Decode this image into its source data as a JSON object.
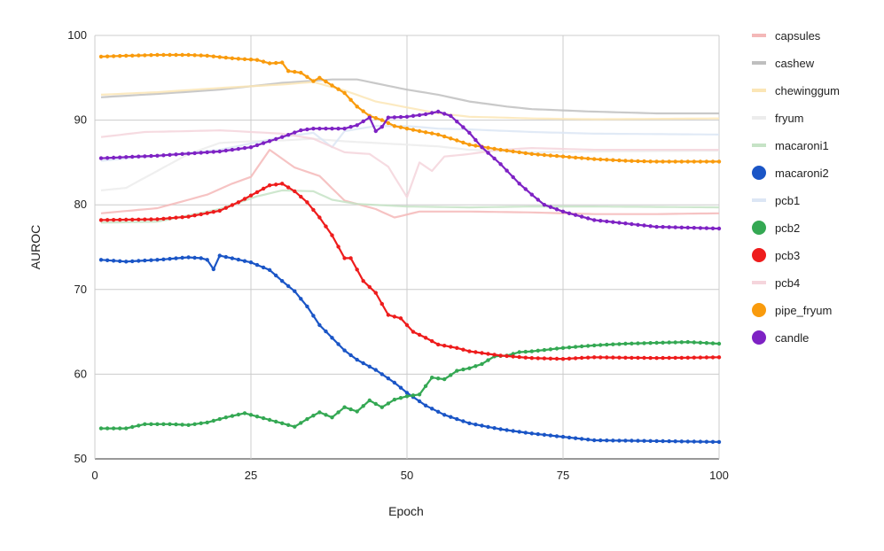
{
  "chart_data": {
    "type": "line",
    "title": "",
    "xlabel": "Epoch",
    "ylabel": "AUROC",
    "xlim": [
      0,
      100
    ],
    "ylim": [
      50,
      100
    ],
    "xticks": [
      0,
      25,
      50,
      75,
      100
    ],
    "yticks": [
      50,
      60,
      70,
      80,
      90,
      100
    ],
    "grid": true,
    "legend_position": "right",
    "series": [
      {
        "name": "capsules",
        "color": "#f4b8b8",
        "faded": true,
        "marker": false,
        "points": [
          [
            1,
            79.0
          ],
          [
            10,
            79.6
          ],
          [
            18,
            81.2
          ],
          [
            22,
            82.5
          ],
          [
            25,
            83.3
          ],
          [
            28,
            86.5
          ],
          [
            32,
            84.4
          ],
          [
            36,
            83.4
          ],
          [
            40,
            80.5
          ],
          [
            45,
            79.5
          ],
          [
            48,
            78.5
          ],
          [
            52,
            79.2
          ],
          [
            60,
            79.2
          ],
          [
            70,
            79.1
          ],
          [
            80,
            78.9
          ],
          [
            90,
            78.9
          ],
          [
            100,
            79.0
          ]
        ]
      },
      {
        "name": "cashew",
        "color": "#bfbfbf",
        "faded": true,
        "marker": false,
        "points": [
          [
            1,
            92.7
          ],
          [
            10,
            93.1
          ],
          [
            20,
            93.6
          ],
          [
            30,
            94.4
          ],
          [
            38,
            94.8
          ],
          [
            42,
            94.8
          ],
          [
            50,
            93.6
          ],
          [
            55,
            93.0
          ],
          [
            60,
            92.2
          ],
          [
            66,
            91.6
          ],
          [
            70,
            91.3
          ],
          [
            80,
            91.0
          ],
          [
            90,
            90.8
          ],
          [
            100,
            90.8
          ]
        ]
      },
      {
        "name": "chewinggum",
        "color": "#fbe6b6",
        "faded": true,
        "marker": false,
        "points": [
          [
            1,
            93.0
          ],
          [
            10,
            93.3
          ],
          [
            20,
            93.8
          ],
          [
            30,
            94.2
          ],
          [
            35,
            94.5
          ],
          [
            40,
            93.5
          ],
          [
            45,
            92.2
          ],
          [
            50,
            91.5
          ],
          [
            55,
            90.8
          ],
          [
            60,
            90.4
          ],
          [
            70,
            90.2
          ],
          [
            80,
            90.1
          ],
          [
            100,
            90.2
          ]
        ]
      },
      {
        "name": "fryum",
        "color": "#ececec",
        "faded": true,
        "marker": false,
        "points": [
          [
            1,
            81.7
          ],
          [
            5,
            82.0
          ],
          [
            10,
            84.0
          ],
          [
            15,
            86.0
          ],
          [
            20,
            87.3
          ],
          [
            25,
            87.5
          ],
          [
            30,
            87.6
          ],
          [
            35,
            87.8
          ],
          [
            40,
            87.5
          ],
          [
            45,
            87.3
          ],
          [
            50,
            87.1
          ],
          [
            55,
            86.9
          ],
          [
            60,
            86.5
          ],
          [
            70,
            86.2
          ],
          [
            80,
            86.3
          ],
          [
            100,
            86.4
          ]
        ]
      },
      {
        "name": "macaroni1",
        "color": "#c6e3c6",
        "faded": true,
        "marker": false,
        "points": [
          [
            1,
            77.9
          ],
          [
            10,
            78.0
          ],
          [
            20,
            79.5
          ],
          [
            26,
            81.0
          ],
          [
            30,
            81.7
          ],
          [
            35,
            81.6
          ],
          [
            38,
            80.6
          ],
          [
            42,
            80.1
          ],
          [
            50,
            79.8
          ],
          [
            60,
            79.7
          ],
          [
            70,
            79.8
          ],
          [
            80,
            79.8
          ],
          [
            100,
            79.7
          ]
        ]
      },
      {
        "name": "macaroni2",
        "color": "#1a55c6",
        "faded": false,
        "marker": true,
        "points": [
          [
            1,
            73.5
          ],
          [
            5,
            73.3
          ],
          [
            10,
            73.5
          ],
          [
            15,
            73.8
          ],
          [
            17,
            73.7
          ],
          [
            18,
            73.5
          ],
          [
            19,
            72.4
          ],
          [
            20,
            74.0
          ],
          [
            25,
            73.2
          ],
          [
            28,
            72.3
          ],
          [
            30,
            71.0
          ],
          [
            32,
            69.8
          ],
          [
            34,
            68.0
          ],
          [
            36,
            65.8
          ],
          [
            38,
            64.3
          ],
          [
            40,
            62.8
          ],
          [
            42,
            61.7
          ],
          [
            45,
            60.5
          ],
          [
            48,
            59.0
          ],
          [
            50,
            57.8
          ],
          [
            53,
            56.3
          ],
          [
            56,
            55.2
          ],
          [
            60,
            54.2
          ],
          [
            65,
            53.5
          ],
          [
            70,
            53.0
          ],
          [
            75,
            52.6
          ],
          [
            80,
            52.2
          ],
          [
            90,
            52.1
          ],
          [
            100,
            52.0
          ]
        ]
      },
      {
        "name": "pcb1",
        "color": "#dce6f5",
        "faded": true,
        "marker": false,
        "points": [
          [
            1,
            85.2
          ],
          [
            10,
            85.8
          ],
          [
            20,
            86.5
          ],
          [
            30,
            88.0
          ],
          [
            35,
            88.5
          ],
          [
            38,
            86.8
          ],
          [
            40,
            88.7
          ],
          [
            45,
            89.3
          ],
          [
            50,
            89.3
          ],
          [
            55,
            89.0
          ],
          [
            60,
            88.9
          ],
          [
            70,
            88.6
          ],
          [
            80,
            88.4
          ],
          [
            100,
            88.3
          ]
        ]
      },
      {
        "name": "pcb2",
        "color": "#34a853",
        "faded": false,
        "marker": true,
        "points": [
          [
            1,
            53.6
          ],
          [
            5,
            53.6
          ],
          [
            8,
            54.1
          ],
          [
            12,
            54.1
          ],
          [
            15,
            54.0
          ],
          [
            18,
            54.3
          ],
          [
            21,
            54.9
          ],
          [
            24,
            55.4
          ],
          [
            27,
            54.8
          ],
          [
            30,
            54.2
          ],
          [
            32,
            53.8
          ],
          [
            34,
            54.7
          ],
          [
            36,
            55.5
          ],
          [
            38,
            54.9
          ],
          [
            40,
            56.1
          ],
          [
            42,
            55.6
          ],
          [
            44,
            56.9
          ],
          [
            46,
            56.1
          ],
          [
            48,
            57.0
          ],
          [
            50,
            57.4
          ],
          [
            52,
            57.6
          ],
          [
            54,
            59.6
          ],
          [
            56,
            59.4
          ],
          [
            58,
            60.4
          ],
          [
            60,
            60.7
          ],
          [
            62,
            61.2
          ],
          [
            64,
            62.1
          ],
          [
            66,
            62.2
          ],
          [
            68,
            62.6
          ],
          [
            70,
            62.7
          ],
          [
            75,
            63.1
          ],
          [
            80,
            63.4
          ],
          [
            85,
            63.6
          ],
          [
            90,
            63.7
          ],
          [
            95,
            63.8
          ],
          [
            100,
            63.6
          ]
        ]
      },
      {
        "name": "pcb3",
        "color": "#ee1c1c",
        "faded": false,
        "marker": true,
        "points": [
          [
            1,
            78.2
          ],
          [
            10,
            78.3
          ],
          [
            15,
            78.6
          ],
          [
            20,
            79.3
          ],
          [
            23,
            80.3
          ],
          [
            26,
            81.5
          ],
          [
            28,
            82.3
          ],
          [
            30,
            82.5
          ],
          [
            32,
            81.6
          ],
          [
            34,
            80.3
          ],
          [
            36,
            78.5
          ],
          [
            38,
            76.4
          ],
          [
            40,
            73.7
          ],
          [
            41,
            73.7
          ],
          [
            43,
            71.0
          ],
          [
            45,
            69.6
          ],
          [
            47,
            67.0
          ],
          [
            49,
            66.6
          ],
          [
            51,
            65.0
          ],
          [
            53,
            64.3
          ],
          [
            55,
            63.5
          ],
          [
            58,
            63.1
          ],
          [
            60,
            62.7
          ],
          [
            65,
            62.2
          ],
          [
            70,
            61.9
          ],
          [
            75,
            61.8
          ],
          [
            80,
            62.0
          ],
          [
            90,
            61.9
          ],
          [
            100,
            62.0
          ]
        ]
      },
      {
        "name": "pcb4",
        "color": "#f5d5dc",
        "faded": true,
        "marker": false,
        "points": [
          [
            1,
            88.0
          ],
          [
            8,
            88.6
          ],
          [
            15,
            88.7
          ],
          [
            20,
            88.8
          ],
          [
            25,
            88.6
          ],
          [
            30,
            88.4
          ],
          [
            35,
            87.8
          ],
          [
            40,
            86.2
          ],
          [
            44,
            86.0
          ],
          [
            47,
            84.5
          ],
          [
            50,
            80.9
          ],
          [
            52,
            85.0
          ],
          [
            54,
            84.0
          ],
          [
            56,
            85.7
          ],
          [
            60,
            86.0
          ],
          [
            65,
            86.5
          ],
          [
            70,
            86.7
          ],
          [
            80,
            86.5
          ],
          [
            100,
            86.5
          ]
        ]
      },
      {
        "name": "pipe_fryum",
        "color": "#f99b0d",
        "faded": false,
        "marker": true,
        "points": [
          [
            1,
            97.5
          ],
          [
            5,
            97.6
          ],
          [
            10,
            97.7
          ],
          [
            15,
            97.7
          ],
          [
            18,
            97.6
          ],
          [
            22,
            97.3
          ],
          [
            26,
            97.1
          ],
          [
            28,
            96.7
          ],
          [
            30,
            96.8
          ],
          [
            31,
            95.8
          ],
          [
            33,
            95.6
          ],
          [
            35,
            94.6
          ],
          [
            36,
            95.0
          ],
          [
            38,
            94.1
          ],
          [
            40,
            93.2
          ],
          [
            42,
            91.6
          ],
          [
            44,
            90.5
          ],
          [
            46,
            90.0
          ],
          [
            48,
            89.3
          ],
          [
            50,
            89.0
          ],
          [
            52,
            88.7
          ],
          [
            55,
            88.3
          ],
          [
            58,
            87.6
          ],
          [
            60,
            87.1
          ],
          [
            65,
            86.5
          ],
          [
            70,
            86.0
          ],
          [
            75,
            85.7
          ],
          [
            80,
            85.4
          ],
          [
            85,
            85.2
          ],
          [
            90,
            85.1
          ],
          [
            100,
            85.1
          ]
        ]
      },
      {
        "name": "candle",
        "color": "#7e22c4",
        "faded": false,
        "marker": true,
        "points": [
          [
            1,
            85.5
          ],
          [
            10,
            85.8
          ],
          [
            20,
            86.3
          ],
          [
            25,
            86.8
          ],
          [
            30,
            88.0
          ],
          [
            33,
            88.8
          ],
          [
            35,
            89.0
          ],
          [
            38,
            89.0
          ],
          [
            40,
            89.0
          ],
          [
            42,
            89.4
          ],
          [
            44,
            90.3
          ],
          [
            45,
            88.7
          ],
          [
            46,
            89.2
          ],
          [
            47,
            90.3
          ],
          [
            50,
            90.4
          ],
          [
            53,
            90.7
          ],
          [
            55,
            91.0
          ],
          [
            57,
            90.5
          ],
          [
            60,
            88.5
          ],
          [
            62,
            86.8
          ],
          [
            65,
            84.8
          ],
          [
            68,
            82.5
          ],
          [
            70,
            81.2
          ],
          [
            72,
            80.0
          ],
          [
            75,
            79.2
          ],
          [
            80,
            78.2
          ],
          [
            85,
            77.8
          ],
          [
            90,
            77.4
          ],
          [
            95,
            77.3
          ],
          [
            100,
            77.2
          ]
        ]
      }
    ]
  }
}
